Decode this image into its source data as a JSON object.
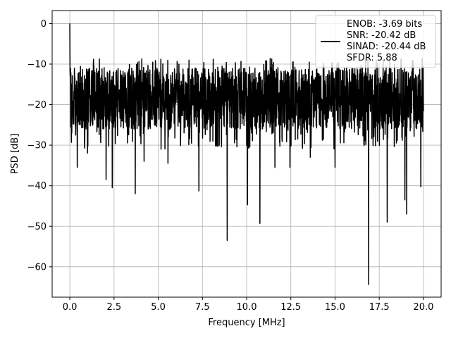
{
  "chart_data": {
    "type": "line",
    "title": "",
    "xlabel": "Frequency [MHz]",
    "ylabel": "PSD [dB]",
    "xlim": [
      -1.0,
      21.0
    ],
    "ylim": [
      -67.5,
      3.2
    ],
    "xticks": [
      0.0,
      2.5,
      5.0,
      7.5,
      10.0,
      12.5,
      15.0,
      17.5,
      20.0
    ],
    "xtick_labels": [
      "0.0",
      "2.5",
      "5.0",
      "7.5",
      "10.0",
      "12.5",
      "15.0",
      "17.5",
      "20.0"
    ],
    "yticks": [
      0,
      -10,
      -20,
      -30,
      -40,
      -50,
      -60
    ],
    "ytick_labels": [
      "0",
      "−10",
      "−20",
      "−30",
      "−40",
      "−50",
      "−60"
    ],
    "grid": true,
    "legend_position": "top-right",
    "series": [
      {
        "legend_lines": [
          "ENOB: -3.69 bits",
          "SNR: -20.42 dB",
          "SINAD: -20.44 dB",
          "SFDR: 5.88"
        ],
        "color": "#000000",
        "x_range": [
          0.0,
          20.0
        ],
        "noise_band": {
          "center": -18.5,
          "lower": -25,
          "upper": -12
        },
        "peaks": [
          {
            "x": 0.0,
            "y": 0.0
          }
        ],
        "dips": [
          {
            "x": 0.42,
            "y": -35.5
          },
          {
            "x": 1.0,
            "y": -32.0
          },
          {
            "x": 2.05,
            "y": -38.5
          },
          {
            "x": 2.4,
            "y": -40.5
          },
          {
            "x": 3.7,
            "y": -42.0
          },
          {
            "x": 4.2,
            "y": -34.0
          },
          {
            "x": 5.55,
            "y": -34.5
          },
          {
            "x": 7.3,
            "y": -41.3
          },
          {
            "x": 8.45,
            "y": -30.0
          },
          {
            "x": 8.9,
            "y": -53.5
          },
          {
            "x": 10.05,
            "y": -44.7
          },
          {
            "x": 10.75,
            "y": -49.3
          },
          {
            "x": 11.6,
            "y": -35.5
          },
          {
            "x": 12.45,
            "y": -35.5
          },
          {
            "x": 13.6,
            "y": -33.0
          },
          {
            "x": 15.0,
            "y": -35.5
          },
          {
            "x": 16.9,
            "y": -64.4
          },
          {
            "x": 17.95,
            "y": -49.0
          },
          {
            "x": 18.95,
            "y": -43.5
          },
          {
            "x": 19.05,
            "y": -47.0
          },
          {
            "x": 19.85,
            "y": -40.3
          }
        ]
      }
    ]
  }
}
